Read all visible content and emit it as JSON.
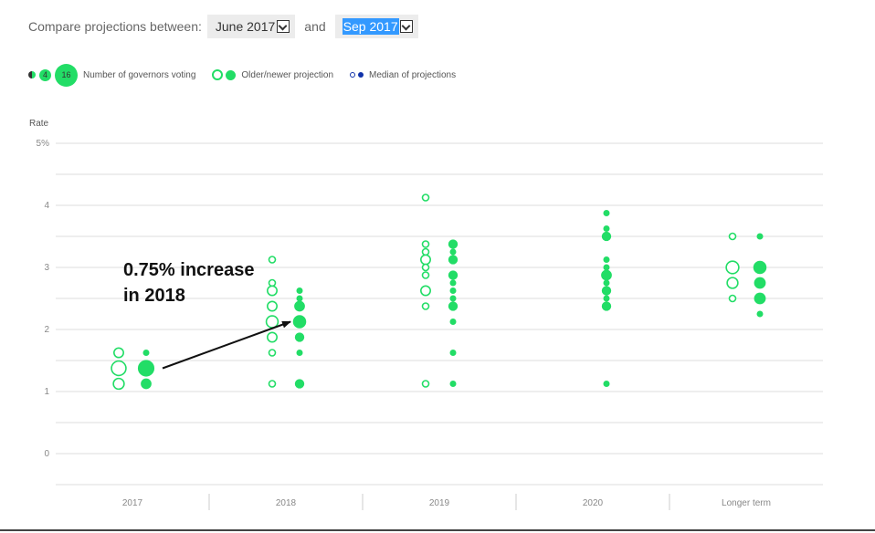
{
  "controls": {
    "compare_label": "Compare projections between:",
    "select_from": "June 2017",
    "and_label": "and",
    "select_to": "Sep 2017"
  },
  "legend": {
    "size_examples": [
      "",
      "4",
      "16"
    ],
    "size_label": "Number of governors voting",
    "older_newer_label": "Older/newer projection",
    "median_label": "Median of projections"
  },
  "colors": {
    "accent": "#22dd66",
    "median": "#1133aa",
    "grid": "#dddddd"
  },
  "chart_data": {
    "type": "scatter",
    "y_title": "Rate",
    "y_ticks": [
      "5%",
      "4",
      "3",
      "2",
      "1",
      "0"
    ],
    "ylim": [
      -0.5,
      5
    ],
    "categories": [
      "2017",
      "2018",
      "2019",
      "2020",
      "Longer term"
    ],
    "series": [
      {
        "name": "Older",
        "style": "hollow",
        "points": [
          {
            "category": "2017",
            "rate": 1.625,
            "count": 2
          },
          {
            "category": "2017",
            "rate": 1.375,
            "count": 8
          },
          {
            "category": "2017",
            "rate": 1.125,
            "count": 3
          },
          {
            "category": "2018",
            "rate": 3.125,
            "count": 1
          },
          {
            "category": "2018",
            "rate": 2.75,
            "count": 1
          },
          {
            "category": "2018",
            "rate": 2.625,
            "count": 2
          },
          {
            "category": "2018",
            "rate": 2.375,
            "count": 2
          },
          {
            "category": "2018",
            "rate": 2.125,
            "count": 4
          },
          {
            "category": "2018",
            "rate": 1.875,
            "count": 2
          },
          {
            "category": "2018",
            "rate": 1.625,
            "count": 1
          },
          {
            "category": "2018",
            "rate": 1.125,
            "count": 1
          },
          {
            "category": "2019",
            "rate": 4.125,
            "count": 1
          },
          {
            "category": "2019",
            "rate": 3.375,
            "count": 1
          },
          {
            "category": "2019",
            "rate": 3.25,
            "count": 1
          },
          {
            "category": "2019",
            "rate": 3.125,
            "count": 2
          },
          {
            "category": "2019",
            "rate": 3.0,
            "count": 1
          },
          {
            "category": "2019",
            "rate": 2.875,
            "count": 1
          },
          {
            "category": "2019",
            "rate": 2.625,
            "count": 2
          },
          {
            "category": "2019",
            "rate": 2.375,
            "count": 1
          },
          {
            "category": "2019",
            "rate": 1.125,
            "count": 1
          },
          {
            "category": "Longer term",
            "rate": 3.5,
            "count": 1
          },
          {
            "category": "Longer term",
            "rate": 3.0,
            "count": 5
          },
          {
            "category": "Longer term",
            "rate": 2.75,
            "count": 3
          },
          {
            "category": "Longer term",
            "rate": 2.5,
            "count": 1
          }
        ]
      },
      {
        "name": "Newer",
        "style": "filled",
        "points": [
          {
            "category": "2017",
            "rate": 1.625,
            "count": 1
          },
          {
            "category": "2017",
            "rate": 1.375,
            "count": 12
          },
          {
            "category": "2017",
            "rate": 1.125,
            "count": 3
          },
          {
            "category": "2018",
            "rate": 2.625,
            "count": 1
          },
          {
            "category": "2018",
            "rate": 2.5,
            "count": 1
          },
          {
            "category": "2018",
            "rate": 2.375,
            "count": 3
          },
          {
            "category": "2018",
            "rate": 2.125,
            "count": 6
          },
          {
            "category": "2018",
            "rate": 1.875,
            "count": 2
          },
          {
            "category": "2018",
            "rate": 1.625,
            "count": 1
          },
          {
            "category": "2018",
            "rate": 1.125,
            "count": 2
          },
          {
            "category": "2019",
            "rate": 3.375,
            "count": 2
          },
          {
            "category": "2019",
            "rate": 3.25,
            "count": 1
          },
          {
            "category": "2019",
            "rate": 3.125,
            "count": 2
          },
          {
            "category": "2019",
            "rate": 2.875,
            "count": 2
          },
          {
            "category": "2019",
            "rate": 2.75,
            "count": 1
          },
          {
            "category": "2019",
            "rate": 2.625,
            "count": 1
          },
          {
            "category": "2019",
            "rate": 2.5,
            "count": 1
          },
          {
            "category": "2019",
            "rate": 2.375,
            "count": 2
          },
          {
            "category": "2019",
            "rate": 2.125,
            "count": 1
          },
          {
            "category": "2019",
            "rate": 1.625,
            "count": 1
          },
          {
            "category": "2019",
            "rate": 1.125,
            "count": 1
          },
          {
            "category": "2020",
            "rate": 3.875,
            "count": 1
          },
          {
            "category": "2020",
            "rate": 3.625,
            "count": 1
          },
          {
            "category": "2020",
            "rate": 3.5,
            "count": 2
          },
          {
            "category": "2020",
            "rate": 3.125,
            "count": 1
          },
          {
            "category": "2020",
            "rate": 3.0,
            "count": 1
          },
          {
            "category": "2020",
            "rate": 2.875,
            "count": 3
          },
          {
            "category": "2020",
            "rate": 2.75,
            "count": 1
          },
          {
            "category": "2020",
            "rate": 2.625,
            "count": 2
          },
          {
            "category": "2020",
            "rate": 2.5,
            "count": 1
          },
          {
            "category": "2020",
            "rate": 2.375,
            "count": 2
          },
          {
            "category": "2020",
            "rate": 1.125,
            "count": 1
          },
          {
            "category": "Longer term",
            "rate": 3.5,
            "count": 1
          },
          {
            "category": "Longer term",
            "rate": 3.0,
            "count": 6
          },
          {
            "category": "Longer term",
            "rate": 2.75,
            "count": 4
          },
          {
            "category": "Longer term",
            "rate": 2.5,
            "count": 4
          },
          {
            "category": "Longer term",
            "rate": 2.25,
            "count": 1
          }
        ]
      }
    ],
    "annotation": {
      "lines": [
        "0.75% increase",
        "in 2018"
      ],
      "arrow_from": {
        "category": "2017",
        "rate": 1.375
      },
      "arrow_to": {
        "category": "2018",
        "rate": 2.125
      }
    },
    "grid": true
  }
}
